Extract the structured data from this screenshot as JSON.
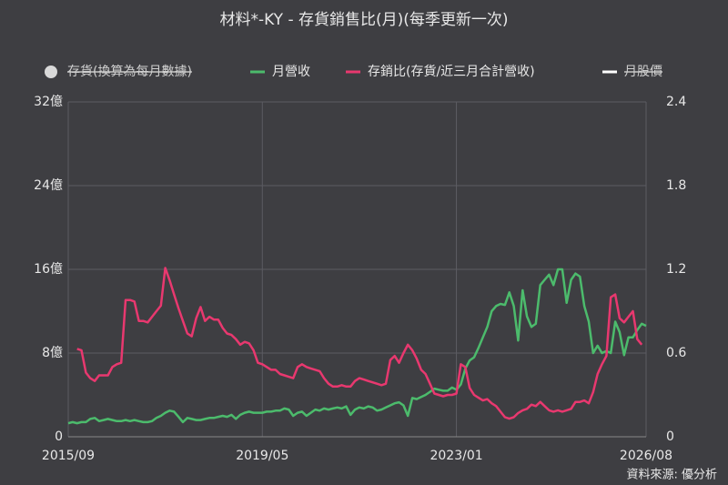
{
  "chart_data": {
    "type": "line",
    "title": "材料*-KY - 存貨銷售比(月)(每季更新一次)",
    "source": "資料來源: 優分析",
    "x": [
      "2015/09",
      "2015/10",
      "2015/11",
      "2015/12",
      "2016/01",
      "2016/02",
      "2016/03",
      "2016/04",
      "2016/05",
      "2016/06",
      "2016/07",
      "2016/08",
      "2016/09",
      "2016/10",
      "2016/11",
      "2016/12",
      "2017/01",
      "2017/02",
      "2017/03",
      "2017/04",
      "2017/05",
      "2017/06",
      "2017/07",
      "2017/08",
      "2017/09",
      "2017/10",
      "2017/11",
      "2017/12",
      "2018/01",
      "2018/02",
      "2018/03",
      "2018/04",
      "2018/05",
      "2018/06",
      "2018/07",
      "2018/08",
      "2018/09",
      "2018/10",
      "2018/11",
      "2018/12",
      "2019/01",
      "2019/02",
      "2019/03",
      "2019/04",
      "2019/05",
      "2019/06",
      "2019/07",
      "2019/08",
      "2019/09",
      "2019/10",
      "2019/11",
      "2019/12",
      "2020/01",
      "2020/02",
      "2020/03",
      "2020/04",
      "2020/05",
      "2020/06",
      "2020/07",
      "2020/08",
      "2020/09",
      "2020/10",
      "2020/11",
      "2020/12",
      "2021/01",
      "2021/02",
      "2021/03",
      "2021/04",
      "2021/05",
      "2021/06",
      "2021/07",
      "2021/08",
      "2021/09",
      "2021/10",
      "2021/11",
      "2021/12",
      "2022/01",
      "2022/02",
      "2022/03",
      "2022/04",
      "2022/05",
      "2022/06",
      "2022/07",
      "2022/08",
      "2022/09",
      "2022/10",
      "2022/11",
      "2022/12",
      "2023/01",
      "2023/02",
      "2023/03",
      "2023/04",
      "2023/05",
      "2023/06",
      "2023/07",
      "2023/08",
      "2023/09",
      "2023/10",
      "2023/11",
      "2023/12",
      "2024/01",
      "2024/02",
      "2024/03",
      "2024/04",
      "2024/05",
      "2024/06",
      "2024/07",
      "2024/08",
      "2024/09",
      "2024/10",
      "2024/11",
      "2024/12",
      "2025/01",
      "2025/02",
      "2025/03",
      "2025/04",
      "2025/05",
      "2025/06",
      "2025/07",
      "2025/08",
      "2025/09",
      "2025/10",
      "2025/11",
      "2025/12",
      "2026/01",
      "2026/02",
      "2026/03",
      "2026/04",
      "2026/05",
      "2026/06",
      "2026/07",
      "2026/08"
    ],
    "xlim": [
      "2015/09",
      "2026/08"
    ],
    "xticks": [
      "2015/09",
      "2019/05",
      "2023/01",
      "2026/08"
    ],
    "ylim": [
      0,
      32
    ],
    "yticks": [
      0,
      {
        "value": 8,
        "label": "8億"
      },
      {
        "value": 16,
        "label": "16億"
      },
      {
        "value": 24,
        "label": "24億"
      },
      {
        "value": 32,
        "label": "32億"
      }
    ],
    "y2lim": [
      0,
      2.4
    ],
    "y2ticks": [
      0,
      0.6,
      1.2,
      1.8,
      2.4
    ],
    "grid": true,
    "series": [
      {
        "name": "存貨(換算為每月數據)",
        "color": "#d9d9d9",
        "hidden": true,
        "marker": "circle"
      },
      {
        "name": "月營收",
        "color": "#4cbb6c",
        "values": [
          1.3,
          1.4,
          1.3,
          1.4,
          1.4,
          1.7,
          1.8,
          1.5,
          1.6,
          1.7,
          1.6,
          1.5,
          1.5,
          1.6,
          1.5,
          1.6,
          1.5,
          1.4,
          1.4,
          1.5,
          1.8,
          2.0,
          2.3,
          2.5,
          2.4,
          1.9,
          1.4,
          1.8,
          1.7,
          1.6,
          1.6,
          1.7,
          1.8,
          1.8,
          1.9,
          2.0,
          1.9,
          2.1,
          1.7,
          2.1,
          2.3,
          2.4,
          2.3,
          2.3,
          2.3,
          2.4,
          2.4,
          2.5,
          2.5,
          2.7,
          2.6,
          2.0,
          2.3,
          2.4,
          2.0,
          2.3,
          2.6,
          2.5,
          2.7,
          2.6,
          2.7,
          2.8,
          2.7,
          2.9,
          2.1,
          2.6,
          2.8,
          2.7,
          2.9,
          2.8,
          2.5,
          2.6,
          2.8,
          3.0,
          3.2,
          3.3,
          3.0,
          2.0,
          3.7,
          3.6,
          3.8,
          4.0,
          4.3,
          4.6,
          4.5,
          4.4,
          4.4,
          4.7,
          4.5,
          5.0,
          6.5,
          7.3,
          7.6,
          8.5,
          9.5,
          10.5,
          12.0,
          12.5,
          12.7,
          12.6,
          13.8,
          12.5,
          9.2,
          14.0,
          11.5,
          10.5,
          10.8,
          14.5,
          15.0,
          15.5,
          14.5,
          16.0,
          16.0,
          12.8,
          15.0,
          15.6,
          15.3,
          12.5,
          11.0,
          8.0,
          8.7,
          8.0,
          8.2,
          8.0,
          11.0,
          10.0,
          7.8,
          9.5,
          9.5,
          10.2,
          10.8,
          10.6
        ]
      },
      {
        "name": "存銷比(存貨/近三月合計營收)",
        "color": "#e8386f",
        "axis": "y2",
        "values": [
          null,
          null,
          0.63,
          0.62,
          0.46,
          0.42,
          0.4,
          0.44,
          0.44,
          0.44,
          0.5,
          0.52,
          0.53,
          0.98,
          0.98,
          0.97,
          0.83,
          0.83,
          0.82,
          0.86,
          0.9,
          0.94,
          1.21,
          1.12,
          1.02,
          0.92,
          0.83,
          0.74,
          0.72,
          0.85,
          0.93,
          0.83,
          0.86,
          0.84,
          0.84,
          0.78,
          0.74,
          0.73,
          0.7,
          0.66,
          0.68,
          0.67,
          0.62,
          0.53,
          0.52,
          0.5,
          0.48,
          0.48,
          0.45,
          0.44,
          0.43,
          0.42,
          0.5,
          0.52,
          0.5,
          0.49,
          0.48,
          0.47,
          0.42,
          0.38,
          0.36,
          0.36,
          0.37,
          0.36,
          0.36,
          0.4,
          0.42,
          0.41,
          0.4,
          0.39,
          0.38,
          0.37,
          0.38,
          0.55,
          0.58,
          0.53,
          0.6,
          0.66,
          0.62,
          0.56,
          0.48,
          0.45,
          0.38,
          0.31,
          0.3,
          0.29,
          0.3,
          0.3,
          0.31,
          0.52,
          0.5,
          0.35,
          0.3,
          0.28,
          0.26,
          0.27,
          0.24,
          0.22,
          0.18,
          0.14,
          0.13,
          0.14,
          0.17,
          0.19,
          0.2,
          0.23,
          0.22,
          0.25,
          0.22,
          0.19,
          0.18,
          0.19,
          0.18,
          0.19,
          0.2,
          0.25,
          0.25,
          0.26,
          0.24,
          0.32,
          0.45,
          0.52,
          0.58,
          1.0,
          1.02,
          0.85,
          0.82,
          0.86,
          0.9,
          0.7,
          0.66,
          null
        ]
      },
      {
        "name": "月股價",
        "color": "#ffffff",
        "hidden": true,
        "marker": "line"
      }
    ]
  }
}
